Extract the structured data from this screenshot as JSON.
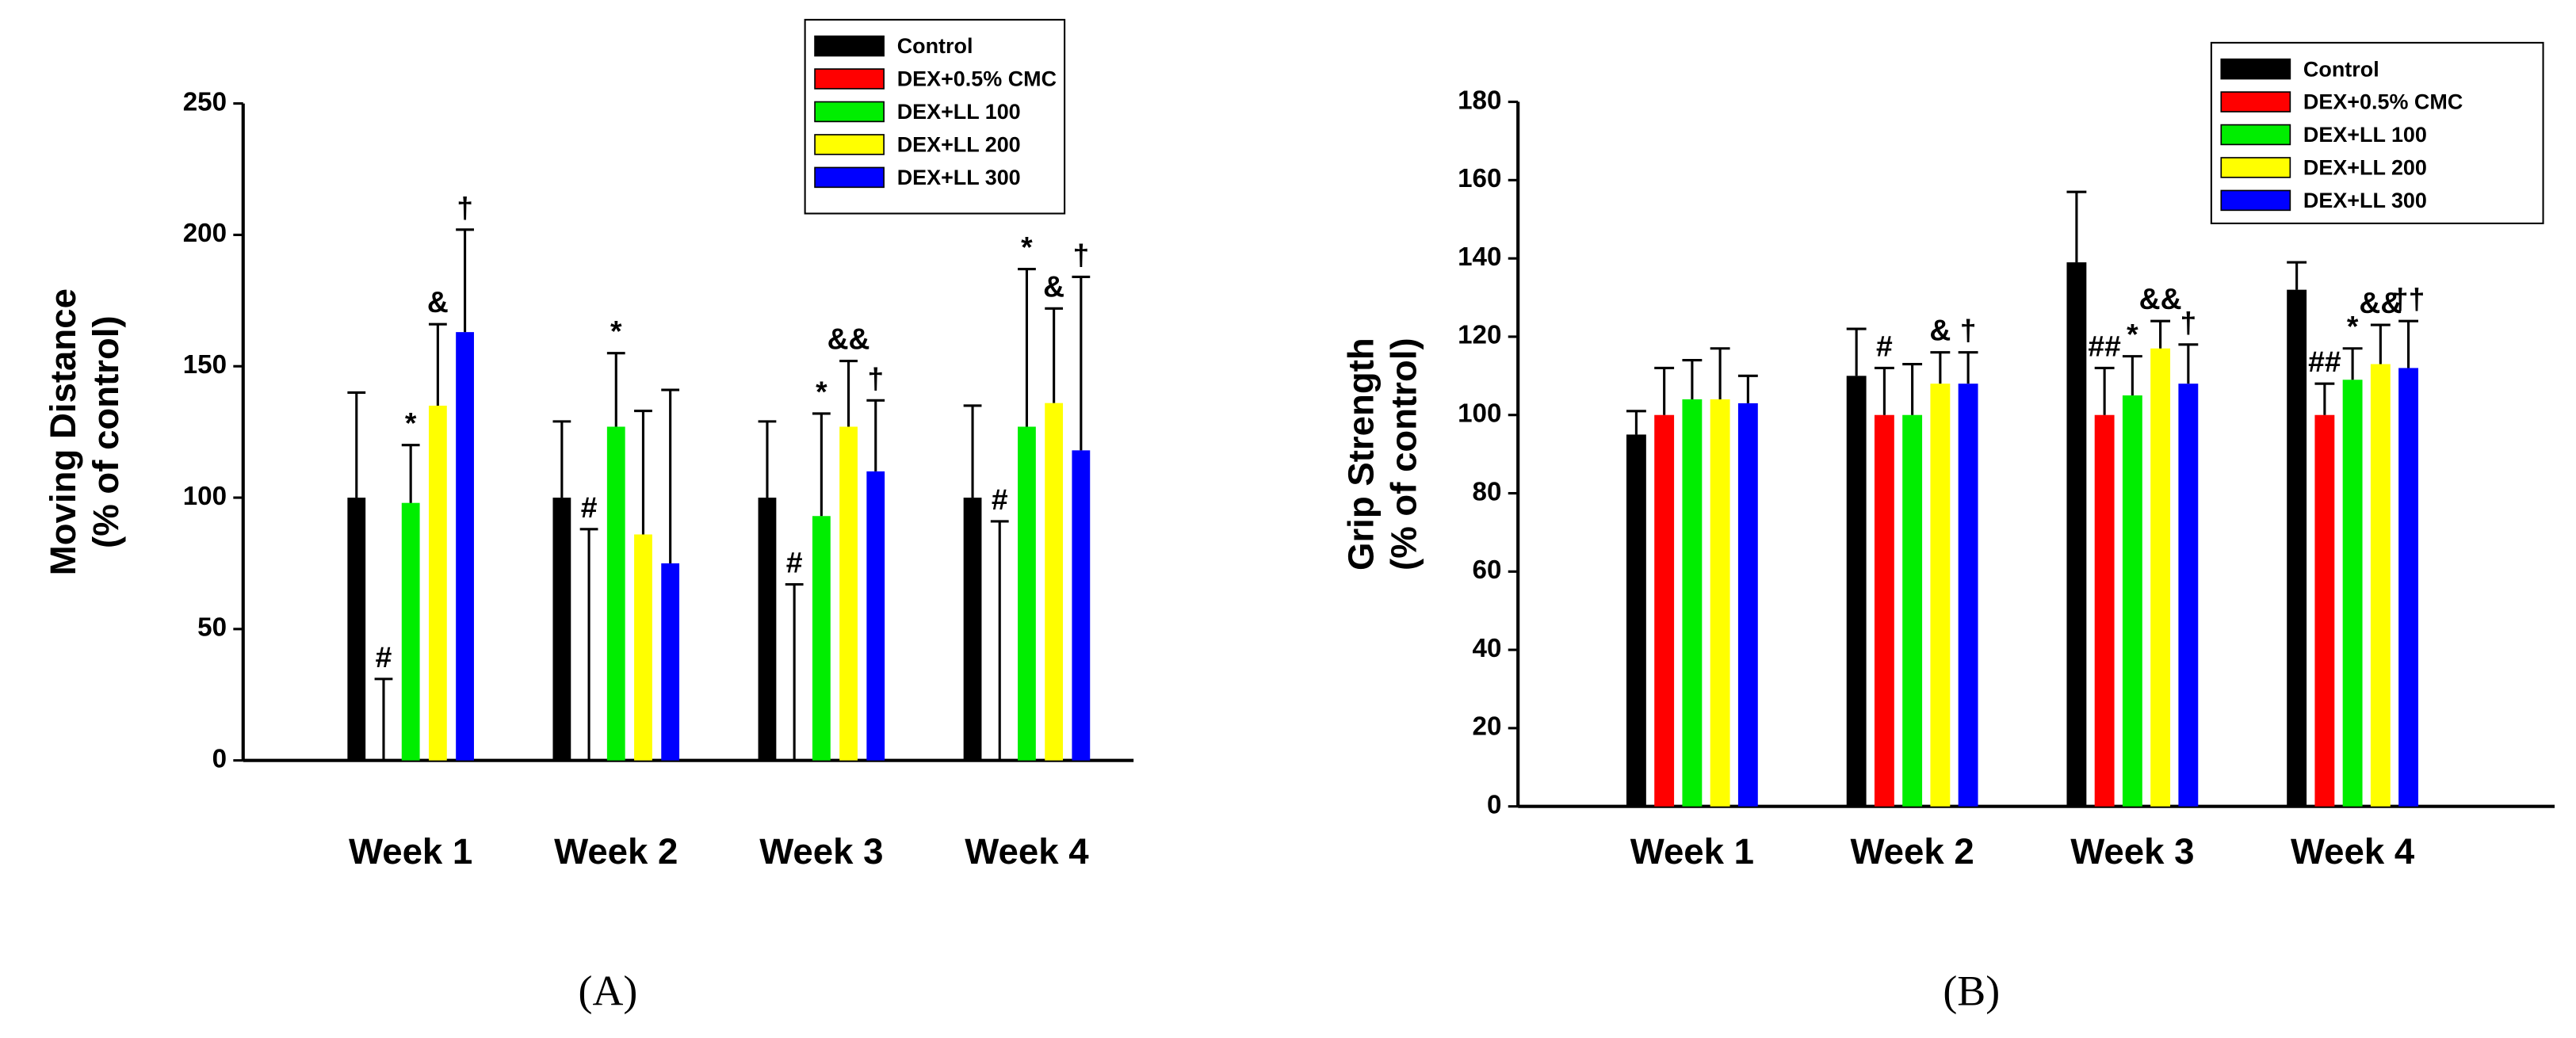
{
  "chart_data": [
    {
      "type": "bar",
      "panel_label": "(A)",
      "ylabel": [
        "Moving Distance",
        "(% of control)"
      ],
      "categories": [
        "Week 1",
        "Week 2",
        "Week 3",
        "Week 4"
      ],
      "ylim": [
        0,
        250
      ],
      "yticks": [
        0,
        50,
        100,
        150,
        200,
        250
      ],
      "series": [
        {
          "name": "Control",
          "color": "#000000",
          "values": [
            100,
            100,
            100,
            100
          ],
          "errors": [
            40,
            29,
            29,
            35
          ],
          "annotations": [
            null,
            null,
            null,
            null
          ]
        },
        {
          "name": "DEX+0.5% CMC",
          "color": "#ff0000",
          "values": [
            0,
            0,
            0,
            0
          ],
          "errors": [
            31,
            88,
            67,
            91
          ],
          "annotations": [
            "#",
            "#",
            "#",
            "#"
          ]
        },
        {
          "name": "DEX+LL 100",
          "color": "#00ee00",
          "values": [
            98,
            127,
            93,
            127
          ],
          "errors": [
            22,
            28,
            39,
            60
          ],
          "annotations": [
            "*",
            "*",
            "*",
            "*"
          ]
        },
        {
          "name": "DEX+LL 200",
          "color": "#ffff00",
          "values": [
            135,
            86,
            127,
            136
          ],
          "errors": [
            31,
            47,
            25,
            36
          ],
          "annotations": [
            "&",
            null,
            "&&",
            "&"
          ]
        },
        {
          "name": "DEX+LL 300",
          "color": "#0000ff",
          "values": [
            163,
            75,
            110,
            118
          ],
          "errors": [
            39,
            66,
            27,
            66
          ],
          "annotations": [
            "†",
            null,
            "†",
            "†"
          ]
        }
      ]
    },
    {
      "type": "bar",
      "panel_label": "(B)",
      "ylabel": [
        "Grip Strength",
        "(% of control)"
      ],
      "categories": [
        "Week 1",
        "Week 2",
        "Week 3",
        "Week 4"
      ],
      "ylim": [
        0,
        180
      ],
      "yticks": [
        0,
        20,
        40,
        60,
        80,
        100,
        120,
        140,
        160,
        180
      ],
      "series": [
        {
          "name": "Control",
          "color": "#000000",
          "values": [
            95,
            110,
            139,
            132
          ],
          "errors": [
            6,
            12,
            18,
            7
          ],
          "annotations": [
            null,
            null,
            null,
            null
          ]
        },
        {
          "name": "DEX+0.5% CMC",
          "color": "#ff0000",
          "values": [
            100,
            100,
            100,
            100
          ],
          "errors": [
            12,
            12,
            12,
            8
          ],
          "annotations": [
            null,
            "#",
            "##",
            "##"
          ]
        },
        {
          "name": "DEX+LL 100",
          "color": "#00ee00",
          "values": [
            104,
            100,
            105,
            109
          ],
          "errors": [
            10,
            13,
            10,
            8
          ],
          "annotations": [
            null,
            null,
            "*",
            "*"
          ]
        },
        {
          "name": "DEX+LL 200",
          "color": "#ffff00",
          "values": [
            104,
            108,
            117,
            113
          ],
          "errors": [
            13,
            8,
            7,
            10
          ],
          "annotations": [
            null,
            "&",
            "&&",
            "&&"
          ]
        },
        {
          "name": "DEX+LL 300",
          "color": "#0000ff",
          "values": [
            103,
            108,
            108,
            112
          ],
          "errors": [
            7,
            8,
            10,
            12
          ],
          "annotations": [
            null,
            "†",
            "†",
            "††"
          ]
        }
      ]
    }
  ]
}
